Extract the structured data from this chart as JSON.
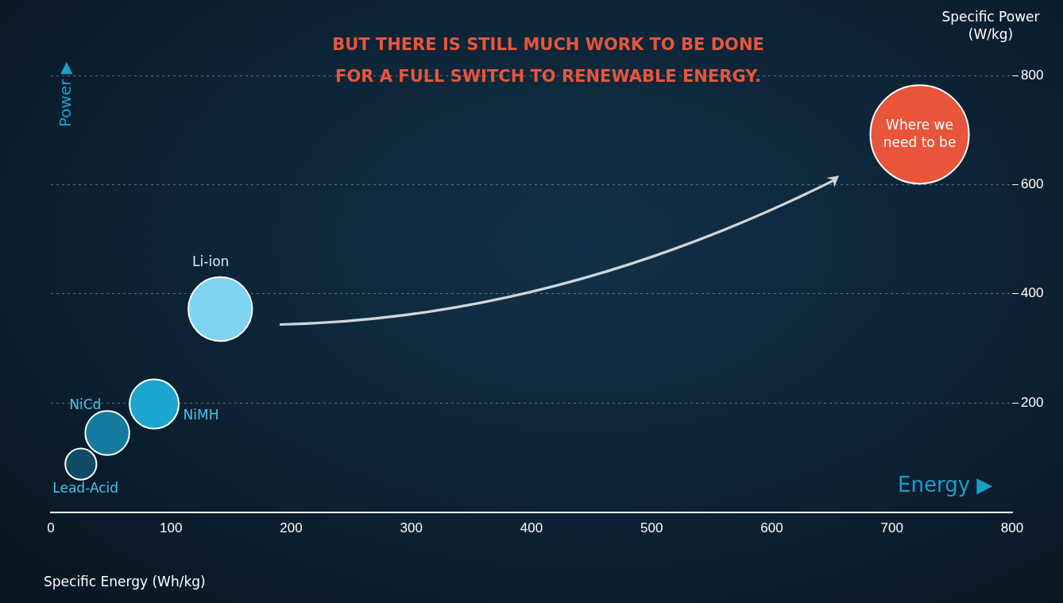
{
  "chart_data": {
    "type": "bubble",
    "title": "BUT THERE IS STILL MUCH WORK TO BE DONE FOR A FULL SWITCH TO RENEWABLE ENERGY.",
    "xlabel": "Specific Energy (Wh/kg)",
    "ylabel": "Specific Power (W/kg)",
    "annotations": [
      "Power ▶",
      "Energy ▶"
    ],
    "series": [
      {
        "name": "Lead-Acid",
        "color": "#0f4a66",
        "x": [
          25
        ],
        "values": [
          88
        ],
        "sizes": [
          0.1
        ]
      },
      {
        "name": "NiCd",
        "color": "#167a9e",
        "x": [
          47
        ],
        "values": [
          145
        ],
        "sizes": [
          0.2
        ]
      },
      {
        "name": "NiMH",
        "color": "#1aa6cf",
        "x": [
          86
        ],
        "values": [
          198
        ],
        "sizes": [
          0.25
        ]
      },
      {
        "name": "Li-ion",
        "color": "#7fd3f0",
        "x": [
          141
        ],
        "values": [
          372
        ],
        "sizes": [
          0.42
        ]
      },
      {
        "name": "Where we need to be",
        "color": "#e8553a",
        "x": [
          723
        ],
        "values": [
          692
        ],
        "sizes": [
          1
        ]
      }
    ],
    "xlim": [
      0,
      800
    ],
    "xticks": [
      0,
      100,
      200,
      300,
      400,
      500,
      600,
      700,
      800
    ],
    "ylim": [
      0,
      800
    ],
    "yticks": [
      200,
      400,
      600,
      800
    ],
    "grid": "y",
    "legend": false
  }
}
